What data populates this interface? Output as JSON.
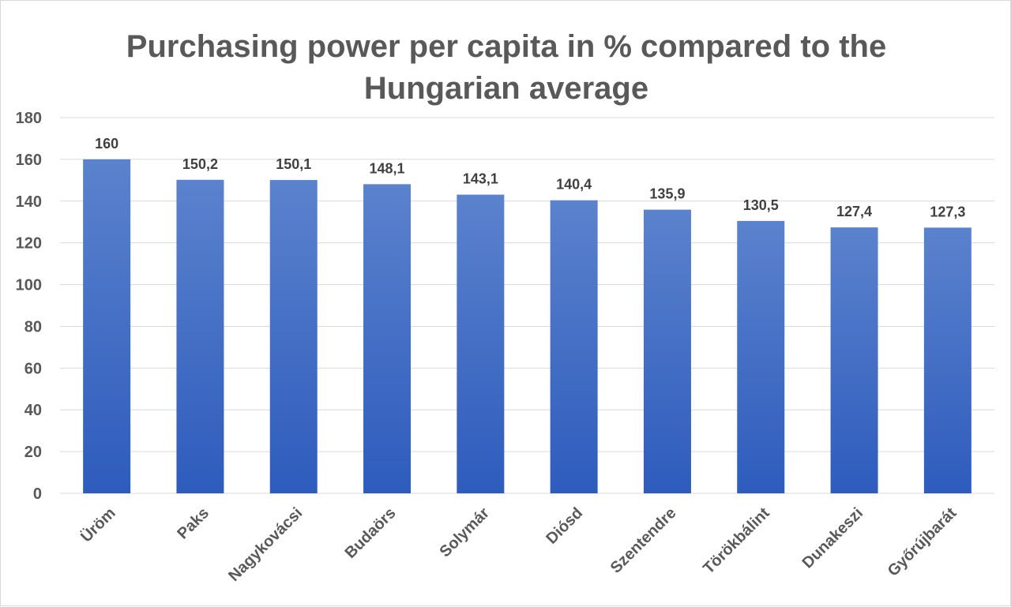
{
  "chart_data": {
    "type": "bar",
    "title_lines": [
      "Purchasing power per capita in % compared to the",
      "Hungarian average"
    ],
    "categories": [
      "Üröm",
      "Paks",
      "Nagykovácsi",
      "Budaörs",
      "Solymár",
      "Diósd",
      "Szentendre",
      "Törökbálint",
      "Dunakeszi",
      "Győrújbarát"
    ],
    "values": [
      160,
      150.2,
      150.1,
      148.1,
      143.1,
      140.4,
      135.9,
      130.5,
      127.4,
      127.3
    ],
    "data_labels": [
      "160",
      "150,2",
      "150,1",
      "148,1",
      "143,1",
      "140,4",
      "135,9",
      "130,5",
      "127,4",
      "127,3"
    ],
    "ylim": [
      0,
      180
    ],
    "yticks": [
      0,
      20,
      40,
      60,
      80,
      100,
      120,
      140,
      160,
      180
    ],
    "xlabel": "",
    "ylabel": "",
    "grid": true,
    "legend": "none",
    "colors": {
      "bar_top": "#5b82cd",
      "bar_bottom": "#2e5cbd",
      "gridline": "#d9d9d9",
      "axis_text": "#595959",
      "label_text": "#404040"
    }
  }
}
